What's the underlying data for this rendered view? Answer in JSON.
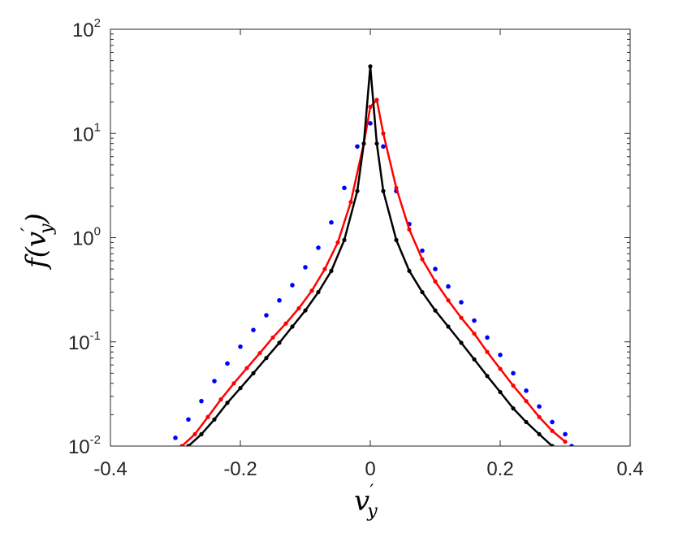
{
  "chart_data": {
    "type": "scatter",
    "title": "",
    "xlabel": {
      "base": "v",
      "sub": "y",
      "prime": "′"
    },
    "ylabel": {
      "prefix": "f(",
      "base": "v",
      "sub": "y",
      "prime": "′",
      "suffix": ")"
    },
    "x_scale": "linear",
    "y_scale": "log",
    "xlim": [
      -0.4,
      0.4
    ],
    "ylim": [
      0.01,
      100
    ],
    "grid": false,
    "legend": "none",
    "x_ticks": [
      "-0.4",
      "-0.2",
      "0",
      "0.2",
      "0.4"
    ],
    "y_ticks": [
      {
        "base": "10",
        "exp": "-2"
      },
      {
        "base": "10",
        "exp": "-1"
      },
      {
        "base": "10",
        "exp": "0"
      },
      {
        "base": "10",
        "exp": "1"
      },
      {
        "base": "10",
        "exp": "2"
      }
    ],
    "series": [
      {
        "color": "#0000ff",
        "style": "dots",
        "points": [
          [
            -0.3,
            0.012
          ],
          [
            -0.28,
            0.018
          ],
          [
            -0.26,
            0.027
          ],
          [
            -0.24,
            0.042
          ],
          [
            -0.22,
            0.062
          ],
          [
            -0.2,
            0.09
          ],
          [
            -0.18,
            0.13
          ],
          [
            -0.16,
            0.18
          ],
          [
            -0.14,
            0.25
          ],
          [
            -0.12,
            0.35
          ],
          [
            -0.1,
            0.52
          ],
          [
            -0.08,
            0.8
          ],
          [
            -0.06,
            1.4
          ],
          [
            -0.04,
            3.0
          ],
          [
            -0.02,
            7.5
          ],
          [
            0.0,
            12.5
          ],
          [
            0.02,
            7.5
          ],
          [
            0.04,
            2.8
          ],
          [
            0.06,
            1.35
          ],
          [
            0.08,
            0.75
          ],
          [
            0.1,
            0.5
          ],
          [
            0.12,
            0.34
          ],
          [
            0.14,
            0.24
          ],
          [
            0.16,
            0.16
          ],
          [
            0.18,
            0.11
          ],
          [
            0.2,
            0.075
          ],
          [
            0.22,
            0.05
          ],
          [
            0.24,
            0.034
          ],
          [
            0.26,
            0.024
          ],
          [
            0.28,
            0.017
          ],
          [
            0.3,
            0.013
          ],
          [
            0.31,
            0.01
          ]
        ]
      },
      {
        "color": "#ff0000",
        "style": "line-dots",
        "points": [
          [
            -0.29,
            0.01
          ],
          [
            -0.27,
            0.013
          ],
          [
            -0.25,
            0.019
          ],
          [
            -0.23,
            0.028
          ],
          [
            -0.21,
            0.04
          ],
          [
            -0.19,
            0.056
          ],
          [
            -0.17,
            0.078
          ],
          [
            -0.15,
            0.11
          ],
          [
            -0.13,
            0.15
          ],
          [
            -0.11,
            0.21
          ],
          [
            -0.09,
            0.31
          ],
          [
            -0.07,
            0.5
          ],
          [
            -0.05,
            0.9
          ],
          [
            -0.03,
            2.2
          ],
          [
            -0.01,
            8.0
          ],
          [
            0.0,
            18.0
          ],
          [
            0.01,
            21.0
          ],
          [
            0.02,
            10.0
          ],
          [
            0.04,
            3.0
          ],
          [
            0.06,
            1.2
          ],
          [
            0.08,
            0.62
          ],
          [
            0.1,
            0.38
          ],
          [
            0.12,
            0.25
          ],
          [
            0.14,
            0.17
          ],
          [
            0.16,
            0.12
          ],
          [
            0.18,
            0.08
          ],
          [
            0.2,
            0.055
          ],
          [
            0.22,
            0.038
          ],
          [
            0.24,
            0.027
          ],
          [
            0.26,
            0.019
          ],
          [
            0.28,
            0.014
          ],
          [
            0.3,
            0.011
          ]
        ]
      },
      {
        "color": "#000000",
        "style": "line-dots",
        "points": [
          [
            -0.28,
            0.01
          ],
          [
            -0.26,
            0.013
          ],
          [
            -0.24,
            0.018
          ],
          [
            -0.22,
            0.026
          ],
          [
            -0.2,
            0.036
          ],
          [
            -0.18,
            0.05
          ],
          [
            -0.16,
            0.07
          ],
          [
            -0.14,
            0.098
          ],
          [
            -0.12,
            0.14
          ],
          [
            -0.1,
            0.2
          ],
          [
            -0.08,
            0.3
          ],
          [
            -0.06,
            0.48
          ],
          [
            -0.04,
            0.95
          ],
          [
            -0.02,
            2.8
          ],
          [
            -0.01,
            8.0
          ],
          [
            0.0,
            44.0
          ],
          [
            0.01,
            8.0
          ],
          [
            0.02,
            2.8
          ],
          [
            0.04,
            0.95
          ],
          [
            0.06,
            0.48
          ],
          [
            0.08,
            0.3
          ],
          [
            0.1,
            0.2
          ],
          [
            0.12,
            0.14
          ],
          [
            0.14,
            0.098
          ],
          [
            0.16,
            0.068
          ],
          [
            0.18,
            0.047
          ],
          [
            0.2,
            0.033
          ],
          [
            0.22,
            0.023
          ],
          [
            0.24,
            0.017
          ],
          [
            0.26,
            0.013
          ],
          [
            0.28,
            0.01
          ]
        ]
      }
    ]
  }
}
